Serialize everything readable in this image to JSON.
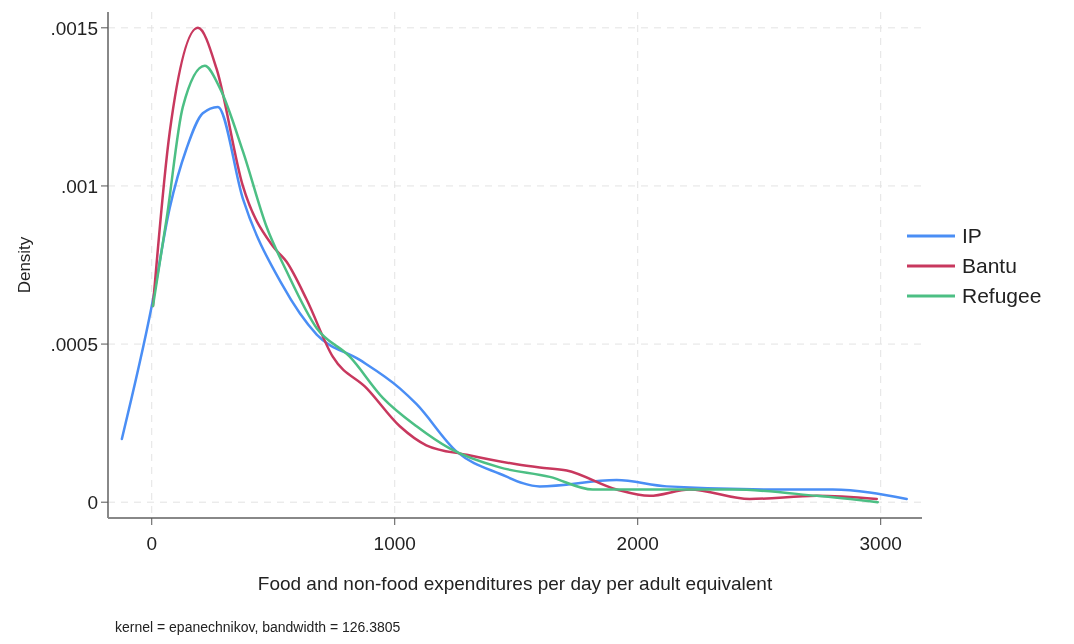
{
  "chart_data": {
    "type": "line",
    "xlabel": "Food and non-food expenditures per day per adult equivalent",
    "ylabel": "Density",
    "annotations": [
      "kernel = epanechnikov, bandwidth = 126.3805"
    ],
    "xlim": [
      -180,
      3170
    ],
    "ylim": [
      -5e-05,
      0.00155
    ],
    "xticks": [
      0,
      1000,
      2000,
      3000
    ],
    "yticks": [
      {
        "value": 0,
        "label": "0"
      },
      {
        "value": 0.0005,
        "label": ".0005"
      },
      {
        "value": 0.001,
        "label": ".001"
      },
      {
        "value": 0.0015,
        "label": ".0015"
      }
    ],
    "grid": true,
    "legend": "right",
    "line_style": "solid",
    "marker": "none",
    "series": [
      {
        "name": "IP",
        "color": "#4a8ef5",
        "x": [
          -123,
          0,
          74,
          144,
          210,
          272,
          375,
          535,
          679,
          856,
          1021,
          1090,
          1255,
          1432,
          1597,
          1913,
          2119,
          2597,
          2802,
          3107
        ],
        "values": [
          0.0002,
          0.00062,
          0.00093,
          0.00112,
          0.00123,
          0.00125,
          0.00096,
          0.00069,
          0.00053,
          0.00045,
          0.00036,
          0.00031,
          0.00016,
          9e-05,
          5e-05,
          7e-05,
          5e-05,
          4e-05,
          4e-05,
          1e-05
        ]
      },
      {
        "name": "Bantu",
        "color": "#c8385e",
        "x": [
          5,
          74,
          190,
          267,
          375,
          498,
          555,
          638,
          745,
          885,
          1021,
          1130,
          1296,
          1502,
          1597,
          1708,
          1913,
          2049,
          2214,
          2461,
          2737,
          2984
        ],
        "values": [
          0.00062,
          0.00117,
          0.0015,
          0.00137,
          0.001,
          0.00081,
          0.00076,
          0.00064,
          0.00046,
          0.00036,
          0.00024,
          0.00018,
          0.00015,
          0.00012,
          0.00011,
          0.0001,
          4e-05,
          2e-05,
          4e-05,
          1e-05,
          2e-05,
          1e-05
        ]
      },
      {
        "name": "Refugee",
        "color": "#4cbf84",
        "x": [
          5,
          62,
          128,
          218,
          280,
          375,
          473,
          555,
          679,
          815,
          951,
          1090,
          1226,
          1432,
          1638,
          1815,
          2049,
          2391,
          2737,
          2988
        ],
        "values": [
          0.00062,
          0.0009,
          0.00125,
          0.00138,
          0.00131,
          0.00111,
          0.00087,
          0.00073,
          0.00055,
          0.00046,
          0.00033,
          0.00024,
          0.00017,
          0.00011,
          8e-05,
          4e-05,
          4e-05,
          4e-05,
          2e-05,
          0
        ]
      }
    ]
  }
}
